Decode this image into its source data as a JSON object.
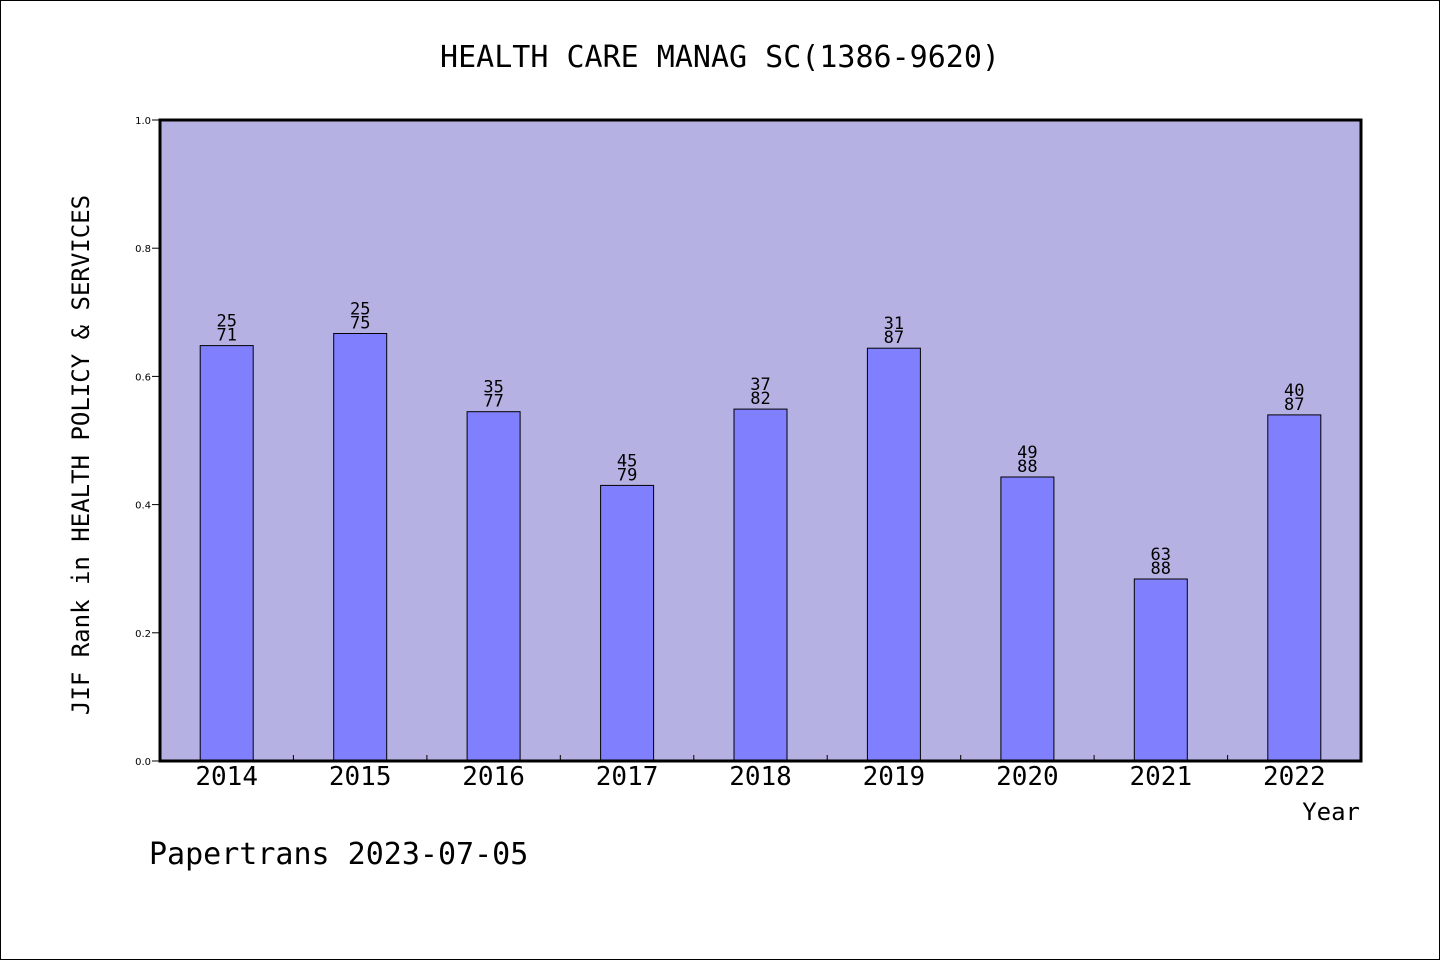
{
  "chart_data": {
    "type": "bar",
    "title": "HEALTH CARE MANAG SC(1386-9620)",
    "xlabel": "Year",
    "ylabel": "JIF Rank in HEALTH POLICY & SERVICES",
    "ylim": [
      0,
      1
    ],
    "yticks": [
      "0.0",
      "0.2",
      "0.4",
      "0.6",
      "0.8",
      "1.0"
    ],
    "categories": [
      "2014",
      "2015",
      "2016",
      "2017",
      "2018",
      "2019",
      "2020",
      "2021",
      "2022"
    ],
    "values": [
      0.648,
      0.667,
      0.545,
      0.43,
      0.549,
      0.644,
      0.443,
      0.284,
      0.54
    ],
    "labels": [
      [
        "25",
        "71"
      ],
      [
        "25",
        "75"
      ],
      [
        "35",
        "77"
      ],
      [
        "45",
        "79"
      ],
      [
        "37",
        "82"
      ],
      [
        "31",
        "87"
      ],
      [
        "49",
        "88"
      ],
      [
        "63",
        "88"
      ],
      [
        "40",
        "87"
      ]
    ],
    "colors": {
      "plot_background": "#b6b1e3",
      "bar_fill": "#8080ff",
      "bar_stroke": "#000000"
    },
    "grid": false
  },
  "footer": "Papertrans 2023-07-05"
}
